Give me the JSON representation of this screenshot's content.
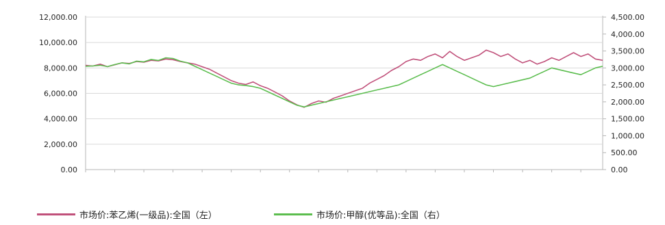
{
  "chart_data": {
    "type": "line",
    "title": "",
    "xlabel": "",
    "left_axis": {
      "ylim": [
        0,
        12000
      ],
      "ticks": [
        "0.00",
        "2,000.00",
        "4,000.00",
        "6,000.00",
        "8,000.00",
        "10,000.00",
        "12,000.00"
      ]
    },
    "right_axis": {
      "ylim": [
        0,
        4500
      ],
      "ticks": [
        "0.00",
        "500.00",
        "1,000.00",
        "1,500.00",
        "2,000.00",
        "2,500.00",
        "3,000.00",
        "3,500.00",
        "4,000.00",
        "4,500.00"
      ]
    },
    "gridlines": true,
    "legend_position": "bottom",
    "series": [
      {
        "name": "市场价:苯乙烯(一级品):全国（左）",
        "axis": "left",
        "color": "#c0507a",
        "values": [
          8200,
          8150,
          8300,
          8100,
          8250,
          8400,
          8350,
          8500,
          8450,
          8600,
          8550,
          8700,
          8650,
          8500,
          8400,
          8300,
          8100,
          7900,
          7600,
          7300,
          7000,
          6800,
          6700,
          6900,
          6600,
          6400,
          6100,
          5800,
          5400,
          5100,
          4900,
          5200,
          5400,
          5300,
          5600,
          5800,
          6000,
          6200,
          6400,
          6800,
          7100,
          7400,
          7800,
          8100,
          8500,
          8700,
          8600,
          8900,
          9100,
          8800,
          9300,
          8900,
          8600,
          8800,
          9000,
          9400,
          9200,
          8900,
          9100,
          8700,
          8400,
          8600,
          8300,
          8500,
          8800,
          8600,
          8900,
          9200,
          8900,
          9100,
          8700,
          8600
        ]
      },
      {
        "name": "市场价:甲醇(优等品):全国（右）",
        "axis": "right",
        "color": "#5bbd4e",
        "values": [
          3050,
          3060,
          3080,
          3040,
          3100,
          3150,
          3120,
          3200,
          3180,
          3250,
          3220,
          3300,
          3280,
          3200,
          3150,
          3050,
          2950,
          2850,
          2750,
          2650,
          2550,
          2500,
          2480,
          2450,
          2400,
          2300,
          2200,
          2100,
          2000,
          1900,
          1850,
          1900,
          1950,
          2000,
          2050,
          2100,
          2150,
          2200,
          2250,
          2300,
          2350,
          2400,
          2450,
          2500,
          2600,
          2700,
          2800,
          2900,
          3000,
          3100,
          3000,
          2900,
          2800,
          2700,
          2600,
          2500,
          2450,
          2500,
          2550,
          2600,
          2650,
          2700,
          2800,
          2900,
          3000,
          2950,
          2900,
          2850,
          2800,
          2900,
          3000,
          3050
        ]
      }
    ]
  }
}
